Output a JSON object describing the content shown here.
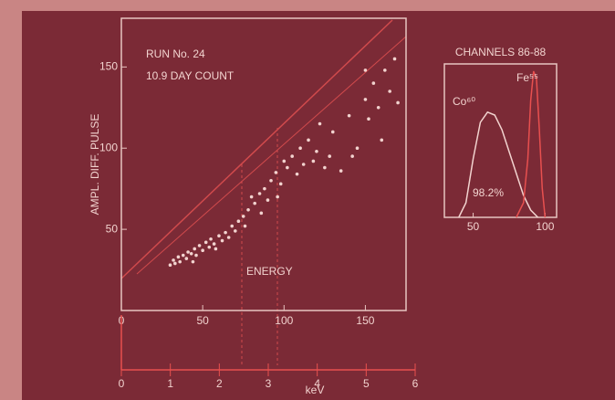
{
  "chart_data": [
    {
      "type": "scatter",
      "title": "RUN No. 24",
      "subtitle": "10.9 DAY COUNT",
      "ylabel": "AMPL. DIFF. PULSE",
      "annotation": "ENERGY",
      "x": [
        30,
        32,
        33,
        35,
        36,
        38,
        40,
        41,
        43,
        45,
        46,
        48,
        50,
        52,
        54,
        55,
        57,
        60,
        62,
        64,
        66,
        68,
        70,
        72,
        75,
        78,
        80,
        82,
        85,
        88,
        90,
        92,
        95,
        98,
        100,
        102,
        105,
        108,
        110,
        112,
        115,
        118,
        120,
        125,
        128,
        130,
        135,
        140,
        145,
        150,
        152,
        155,
        158,
        160,
        162,
        165,
        168,
        170,
        150,
        142,
        122,
        96,
        86,
        76,
        44,
        58
      ],
      "y": [
        28,
        31,
        29,
        33,
        30,
        34,
        32,
        36,
        35,
        38,
        34,
        40,
        37,
        42,
        39,
        44,
        41,
        46,
        43,
        48,
        45,
        52,
        49,
        55,
        58,
        62,
        70,
        66,
        72,
        75,
        68,
        80,
        85,
        78,
        92,
        88,
        95,
        84,
        100,
        90,
        105,
        92,
        98,
        88,
        95,
        110,
        86,
        120,
        100,
        130,
        118,
        140,
        125,
        105,
        148,
        135,
        155,
        128,
        148,
        95,
        115,
        70,
        60,
        52,
        30,
        38
      ],
      "color": "#f2d3cf",
      "xlim": [
        0,
        175
      ],
      "ylim": [
        0,
        180
      ],
      "xticks": [
        0,
        50,
        100,
        150
      ],
      "yticks": [
        50,
        100,
        150
      ]
    },
    {
      "type": "line",
      "title": "CHANNELS 86-88",
      "annotation": "98.2%",
      "series": [
        {
          "name": "Co⁶⁰",
          "color": "#f2d3cf",
          "x": [
            40,
            45,
            50,
            55,
            60,
            65,
            70,
            75,
            80,
            85,
            90,
            95
          ],
          "values": [
            0,
            10,
            40,
            65,
            72,
            70,
            60,
            45,
            30,
            15,
            5,
            0
          ]
        },
        {
          "name": "Fe⁵⁵",
          "color": "#e8504f",
          "x": [
            80,
            85,
            88,
            90,
            92,
            94,
            96,
            98,
            100
          ],
          "values": [
            0,
            10,
            40,
            80,
            100,
            95,
            60,
            20,
            0
          ]
        }
      ],
      "xlim": [
        30,
        108
      ],
      "ylim": [
        0,
        105
      ],
      "xticks": [
        50,
        100
      ]
    },
    {
      "type": "axis",
      "xlabel": "keV",
      "color": "#e8504f",
      "xlim": [
        0,
        6
      ],
      "xticks": [
        0,
        1,
        2,
        3,
        4,
        5,
        6
      ]
    }
  ]
}
